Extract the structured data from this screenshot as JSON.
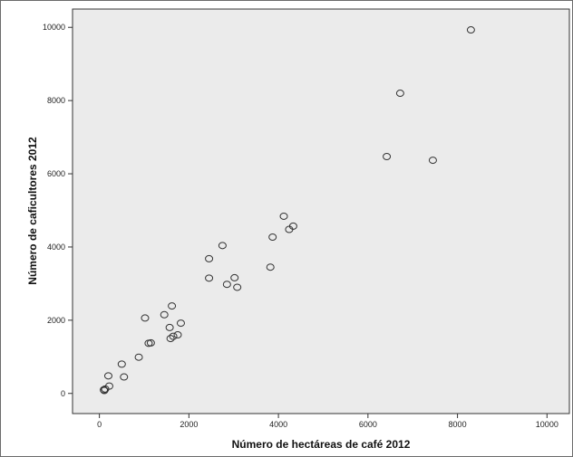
{
  "chart_data": {
    "type": "scatter",
    "title": "",
    "xlabel": "Número de hectáreas de café 2012",
    "ylabel": "Número de caficultores 2012",
    "xlim": [
      -600,
      10500
    ],
    "ylim": [
      -550,
      10500
    ],
    "xticks": [
      0,
      2000,
      4000,
      6000,
      8000,
      10000
    ],
    "yticks": [
      0,
      2000,
      4000,
      6000,
      8000,
      10000
    ],
    "xtick_labels": [
      "0",
      "2000",
      "4000",
      "6000",
      "8000",
      "10000"
    ],
    "ytick_labels": [
      "0",
      "2000",
      "4000",
      "6000",
      "8000",
      "10000"
    ],
    "grid": false,
    "legend": "none",
    "colors": {
      "plot_background": "#ebebeb",
      "marker_stroke": "#333333",
      "axis": "#333333"
    },
    "series": [
      {
        "points": [
          {
            "x": 100,
            "y": 100
          },
          {
            "x": 130,
            "y": 120
          },
          {
            "x": 110,
            "y": 80
          },
          {
            "x": 200,
            "y": 480
          },
          {
            "x": 220,
            "y": 200
          },
          {
            "x": 500,
            "y": 800
          },
          {
            "x": 550,
            "y": 450
          },
          {
            "x": 880,
            "y": 990
          },
          {
            "x": 1020,
            "y": 2060
          },
          {
            "x": 1100,
            "y": 1370
          },
          {
            "x": 1150,
            "y": 1380
          },
          {
            "x": 1450,
            "y": 2150
          },
          {
            "x": 1570,
            "y": 1800
          },
          {
            "x": 1590,
            "y": 1500
          },
          {
            "x": 1620,
            "y": 2390
          },
          {
            "x": 1650,
            "y": 1560
          },
          {
            "x": 1750,
            "y": 1600
          },
          {
            "x": 1820,
            "y": 1920
          },
          {
            "x": 2450,
            "y": 3680
          },
          {
            "x": 2450,
            "y": 3150
          },
          {
            "x": 2750,
            "y": 4040
          },
          {
            "x": 2850,
            "y": 2980
          },
          {
            "x": 3020,
            "y": 3160
          },
          {
            "x": 3080,
            "y": 2900
          },
          {
            "x": 3820,
            "y": 3450
          },
          {
            "x": 3870,
            "y": 4270
          },
          {
            "x": 4120,
            "y": 4840
          },
          {
            "x": 4240,
            "y": 4480
          },
          {
            "x": 4330,
            "y": 4570
          },
          {
            "x": 6420,
            "y": 6470
          },
          {
            "x": 6720,
            "y": 8200
          },
          {
            "x": 7450,
            "y": 6370
          },
          {
            "x": 8300,
            "y": 9930
          }
        ]
      }
    ]
  }
}
